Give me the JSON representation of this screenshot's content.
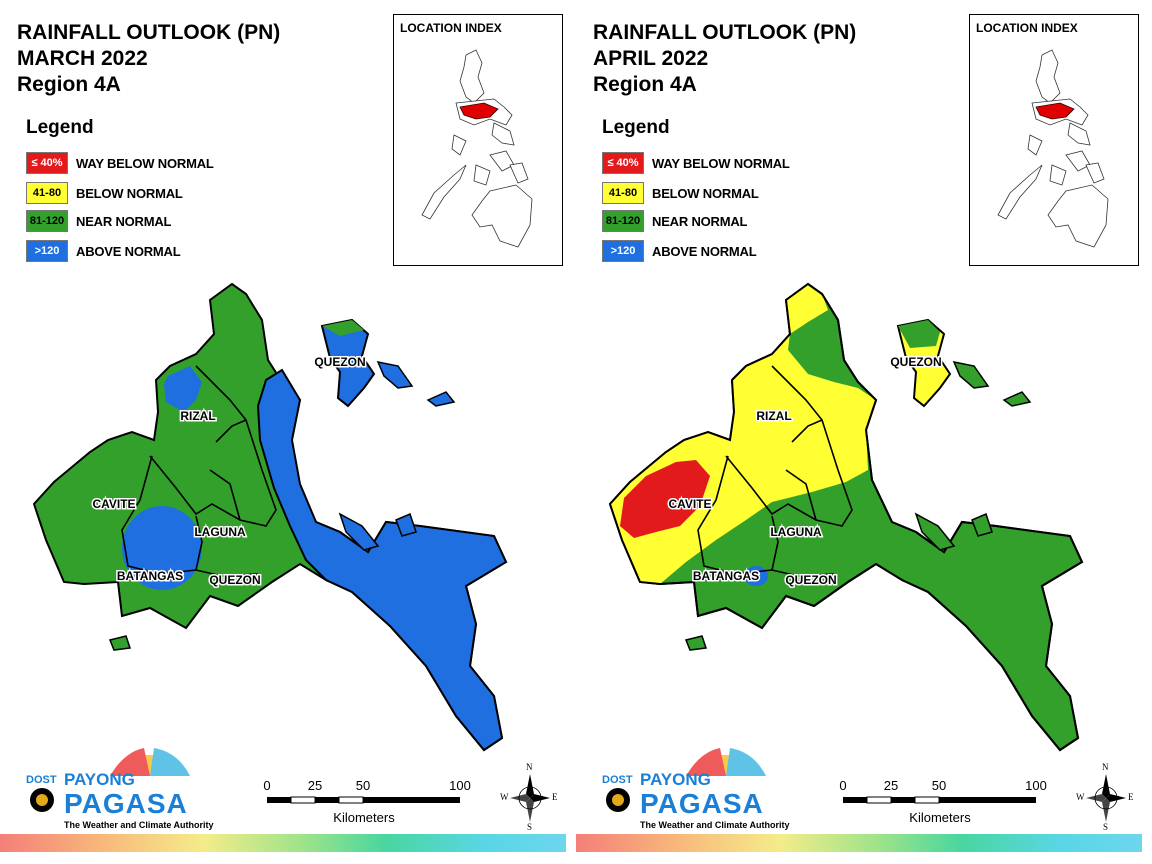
{
  "panels": [
    {
      "title": [
        "RAINFALL OUTLOOK (PN)",
        "MARCH 2022",
        "Region 4A"
      ],
      "legend_title": "Legend",
      "location_index_title": "LOCATION INDEX",
      "labels": {
        "rizal": "RIZAL",
        "cavite": "CAVITE",
        "laguna": "LAGUNA",
        "batangas": "BATANGAS",
        "quezon_south": "QUEZON",
        "quezon_north": "QUEZON"
      },
      "scale": {
        "ticks": [
          "0",
          "25",
          "50",
          "100"
        ],
        "unit": "Kilometers"
      },
      "compass": {
        "n": "N",
        "s": "S",
        "e": "E",
        "w": "W"
      },
      "logo": {
        "dost": "DOST",
        "payong": "PAYONG",
        "pagasa": "PAGASA",
        "tagline": "The Weather and Climate Authority"
      }
    },
    {
      "title": [
        "RAINFALL OUTLOOK (PN)",
        "APRIL 2022",
        "Region 4A"
      ],
      "legend_title": "Legend",
      "location_index_title": "LOCATION INDEX",
      "labels": {
        "rizal": "RIZAL",
        "cavite": "CAVITE",
        "laguna": "LAGUNA",
        "batangas": "BATANGAS",
        "quezon_south": "QUEZON",
        "quezon_north": "QUEZON"
      },
      "scale": {
        "ticks": [
          "0",
          "25",
          "50",
          "100"
        ],
        "unit": "Kilometers"
      },
      "compass": {
        "n": "N",
        "s": "S",
        "e": "E",
        "w": "W"
      },
      "logo": {
        "dost": "DOST",
        "payong": "PAYONG",
        "pagasa": "PAGASA",
        "tagline": "The Weather and Climate Authority"
      }
    }
  ],
  "legend": [
    {
      "range": "≤ 40%",
      "label": "WAY BELOW NORMAL",
      "color": "#e31a1c",
      "text_color": "#ffffff"
    },
    {
      "range": "41-80",
      "label": "BELOW NORMAL",
      "color": "#ffff33",
      "text_color": "#000000"
    },
    {
      "range": "81-120",
      "label": "NEAR NORMAL",
      "color": "#33a02c",
      "text_color": "#000000"
    },
    {
      "range": ">120",
      "label": "ABOVE NORMAL",
      "color": "#1f6fe0",
      "text_color": "#ffffff"
    }
  ],
  "colors": {
    "way_below": "#e31a1c",
    "below": "#ffff33",
    "near": "#33a02c",
    "above": "#1f6fe0",
    "region_highlight": "#e00000"
  }
}
